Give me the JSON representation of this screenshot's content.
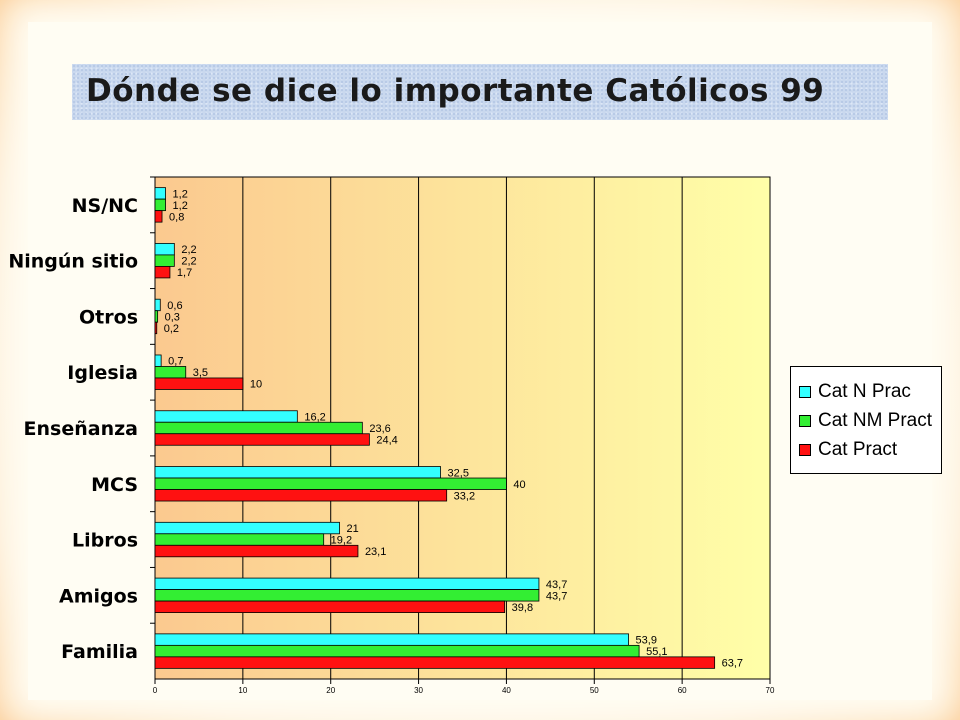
{
  "slide": {
    "title": "Dónde se dice lo importante Católicos 99"
  },
  "colors": {
    "cat_n_prac": "#33ffff",
    "cat_nm_pract": "#33ee33",
    "cat_pract": "#ff1111",
    "plot_background_start": "#fbc98f",
    "plot_background_end": "#ffffa8"
  },
  "chart_data": {
    "type": "bar",
    "orientation": "horizontal",
    "categories": [
      "NS/NC",
      "Ningún sitio",
      "Otros",
      "Iglesia",
      "Enseñanza",
      "MCS",
      "Libros",
      "Amigos",
      "Familia"
    ],
    "series": [
      {
        "name": "Cat N Prac",
        "color": "#33ffff",
        "values": [
          1.2,
          2.2,
          0.6,
          0.7,
          16.2,
          32.5,
          21,
          43.7,
          53.9
        ],
        "labels": [
          "1,2",
          "2,2",
          "0,6",
          "0,7",
          "16,2",
          "32,5",
          "21",
          "43,7",
          "53,9"
        ]
      },
      {
        "name": "Cat NM Pract",
        "color": "#33ee33",
        "values": [
          1.2,
          2.2,
          0.3,
          3.5,
          23.6,
          40,
          19.2,
          43.7,
          55.1
        ],
        "labels": [
          "1,2",
          "2,2",
          "0,3",
          "3,5",
          "23,6",
          "40",
          "19,2",
          "43,7",
          "55,1"
        ]
      },
      {
        "name": "Cat Pract",
        "color": "#ff1111",
        "values": [
          0.8,
          1.7,
          0.2,
          10,
          24.4,
          33.2,
          23.1,
          39.8,
          63.7
        ],
        "labels": [
          "0,8",
          "1,7",
          "0,2",
          "10",
          "24,4",
          "33,2",
          "23,1",
          "39,8",
          "63,7"
        ]
      }
    ],
    "xlim": [
      0,
      70
    ],
    "xticks": [
      "0",
      "10",
      "20",
      "30",
      "40",
      "50",
      "60",
      "70"
    ],
    "grid": "vertical",
    "legend": "right"
  }
}
